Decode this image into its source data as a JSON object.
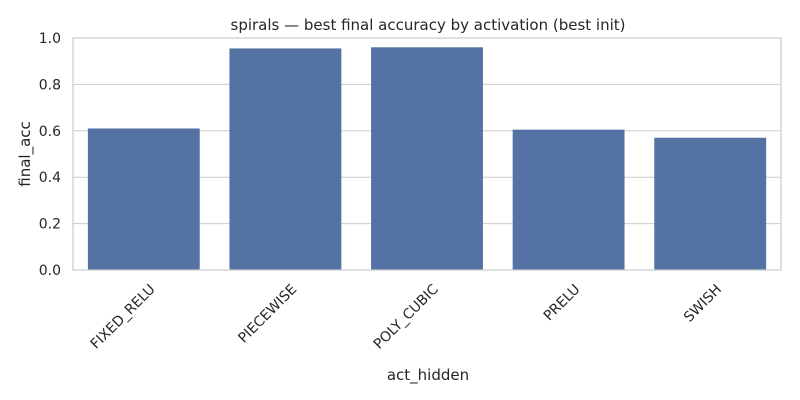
{
  "chart_data": {
    "type": "bar",
    "title": "spirals — best final accuracy by activation (best init)",
    "xlabel": "act_hidden",
    "ylabel": "final_acc",
    "categories": [
      "FIXED_RELU",
      "PIECEWISE",
      "POLY_CUBIC",
      "PRELU",
      "SWISH"
    ],
    "values": [
      0.61,
      0.955,
      0.96,
      0.605,
      0.57
    ],
    "ylim": [
      0,
      1.0
    ],
    "yticks": [
      "0.0",
      "0.2",
      "0.4",
      "0.6",
      "0.8",
      "1.0"
    ],
    "grid": true,
    "bar_color": "#5572a4"
  }
}
